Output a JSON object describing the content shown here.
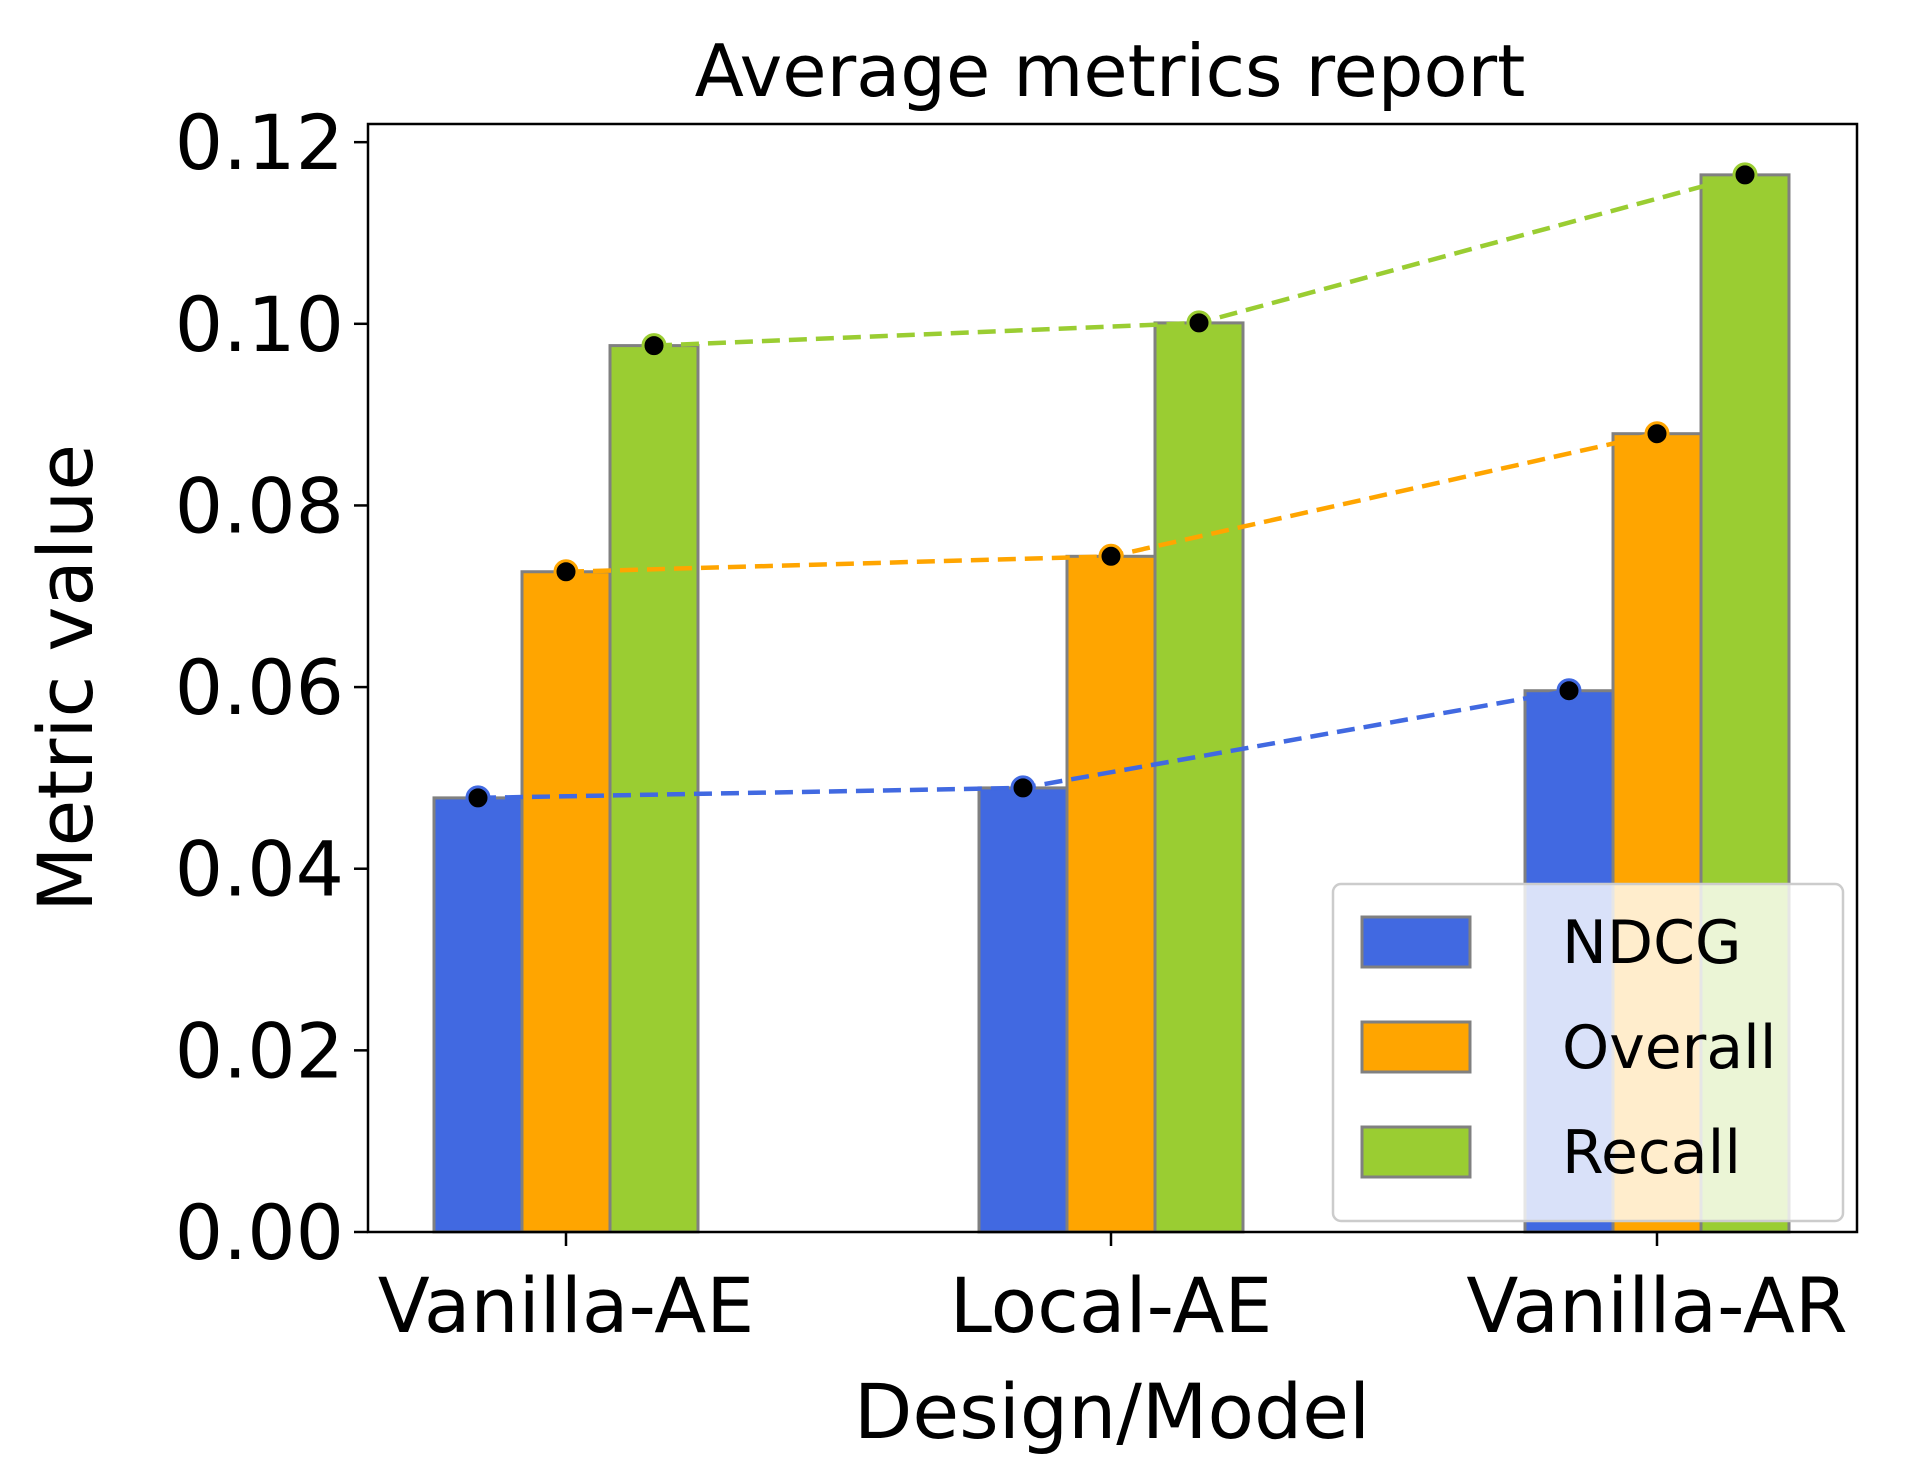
{
  "chart_data": {
    "type": "bar",
    "title": "Average metrics report",
    "xlabel": "Design/Model",
    "ylabel": "Metric value",
    "categories": [
      "Vanilla-AE",
      "Local-AE",
      "Vanilla-AR"
    ],
    "ylim": [
      0,
      0.122
    ],
    "yticks": [
      0.0,
      0.02,
      0.04,
      0.06,
      0.08,
      0.1,
      0.12
    ],
    "ytick_labels": [
      "0.00",
      "0.02",
      "0.04",
      "0.06",
      "0.08",
      "0.10",
      "0.12"
    ],
    "grid": false,
    "legend_position": "lower-right",
    "series": [
      {
        "name": "NDCG",
        "color": "#4169e1",
        "values": [
          0.0478,
          0.0489,
          0.0596
        ]
      },
      {
        "name": "Overall",
        "color": "#ffa500",
        "values": [
          0.0727,
          0.0744,
          0.0879
        ]
      },
      {
        "name": "Recall",
        "color": "#9acd32",
        "values": [
          0.0976,
          0.1001,
          0.1164
        ]
      }
    ],
    "bar_edge_color": "#808080",
    "marker_color": "#000000",
    "trend_lines": "dashed"
  }
}
